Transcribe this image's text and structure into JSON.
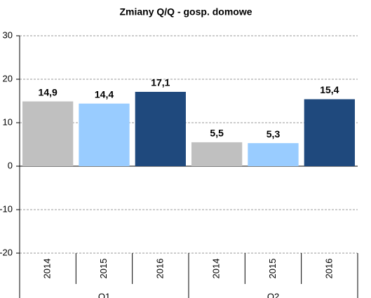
{
  "chart_data": {
    "type": "bar",
    "title": "Zmiany Q/Q - gosp. domowe",
    "categories": [
      "2014",
      "2015",
      "2016",
      "2014",
      "2015",
      "2016"
    ],
    "groups": [
      "Q1",
      "Q2"
    ],
    "values": [
      14.9,
      14.4,
      17.1,
      5.5,
      5.3,
      15.4
    ],
    "value_labels": [
      "14,9",
      "14,4",
      "17,1",
      "5,5",
      "5,3",
      "15,4"
    ],
    "colors": [
      "#c0c0c0",
      "#99ccff",
      "#1f497d",
      "#c0c0c0",
      "#99ccff",
      "#1f497d"
    ],
    "ylim": [
      -20,
      30
    ],
    "yticks": [
      -20,
      -10,
      0,
      10,
      20,
      30
    ],
    "grid": true
  }
}
